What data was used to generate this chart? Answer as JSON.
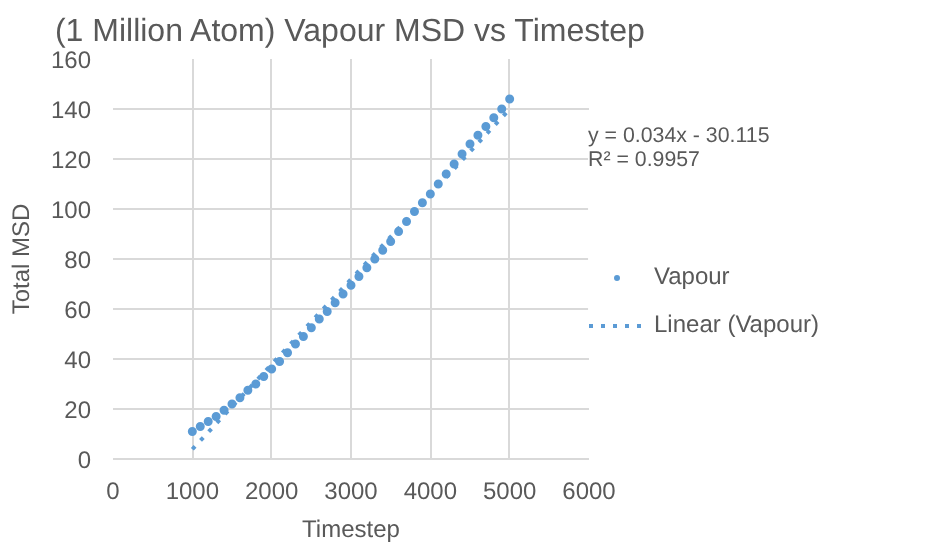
{
  "chart_data": {
    "type": "scatter",
    "title": "(1 Million Atom) Vapour MSD vs Timestep",
    "xlabel": "Timestep",
    "ylabel": "Total MSD",
    "annotations": [
      "y = 0.034x - 30.115",
      "R² = 0.9957"
    ],
    "xlim": [
      0,
      6000
    ],
    "xticks": [
      0,
      1000,
      2000,
      3000,
      4000,
      5000,
      6000
    ],
    "ylim": [
      0,
      160
    ],
    "yticks": [
      0,
      20,
      40,
      60,
      80,
      100,
      120,
      140,
      160
    ],
    "grid": true,
    "legend": "right",
    "series": [
      {
        "name": "Vapour",
        "color": "#5b9bd5",
        "marker": "circle",
        "x": [
          1000,
          1100,
          1200,
          1300,
          1400,
          1500,
          1600,
          1700,
          1800,
          1900,
          2000,
          2100,
          2200,
          2300,
          2400,
          2500,
          2600,
          2700,
          2800,
          2900,
          3000,
          3100,
          3200,
          3300,
          3400,
          3500,
          3600,
          3700,
          3800,
          3900,
          4000,
          4100,
          4200,
          4300,
          4400,
          4500,
          4600,
          4700,
          4800,
          4900,
          5000
        ],
        "values": [
          11,
          13,
          15,
          17,
          19.5,
          22,
          24.5,
          27.5,
          30,
          33,
          36,
          39,
          42.5,
          46,
          49,
          52.5,
          56,
          59,
          62.5,
          66,
          69.5,
          73,
          76.5,
          80,
          83.5,
          87,
          91,
          95,
          99,
          102.5,
          106,
          110,
          114,
          118,
          122,
          126,
          129.5,
          133,
          136.5,
          140,
          144
        ]
      },
      {
        "name": "Linear (Vapour)",
        "type": "line",
        "line_style": "dotted",
        "color": "#5b9bd5",
        "x": [
          1000,
          5000
        ],
        "values": [
          3.9,
          139.9
        ]
      }
    ]
  }
}
